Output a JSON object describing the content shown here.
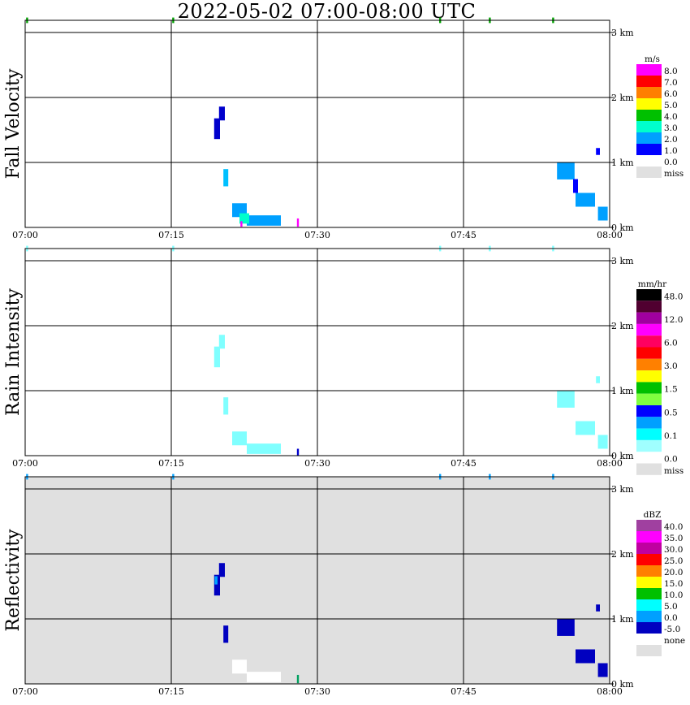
{
  "title": "2022-05-02   07:00-08:00 UTC",
  "chart_data": [
    {
      "type": "heatmap",
      "ylabel": "Fall Velocity",
      "x_ticks": [
        "07:00",
        "07:15",
        "07:30",
        "07:45",
        "08:00"
      ],
      "y_ticks": [
        "0 km",
        "1 km",
        "2 km",
        "3 km"
      ],
      "xlim_minutes": [
        0,
        60
      ],
      "ylim_km": [
        0,
        3.0
      ],
      "grid": true,
      "background": "#ffffff",
      "legend_unit": "m/s",
      "legend": [
        {
          "label": "8.0",
          "color": "#ff00ff"
        },
        {
          "label": "7.0",
          "color": "#ff0000"
        },
        {
          "label": "6.0",
          "color": "#ff7f00"
        },
        {
          "label": "5.0",
          "color": "#ffff00"
        },
        {
          "label": "4.0",
          "color": "#00c000"
        },
        {
          "label": "3.0",
          "color": "#00ffcc"
        },
        {
          "label": "2.0",
          "color": "#00a0ff"
        },
        {
          "label": "1.0",
          "color": "#0000ff"
        },
        {
          "label": "0.0",
          "color": ""
        },
        {
          "label": "miss",
          "color": "#e0e0e0"
        }
      ],
      "echoes": [
        {
          "t": 20.2,
          "h": 1.65,
          "w": 0.6,
          "d": 0.2,
          "color": "#0000cc"
        },
        {
          "t": 19.7,
          "h": 1.43,
          "w": 0.6,
          "d": 0.3,
          "color": "#0000cc"
        },
        {
          "t": 20.6,
          "h": 0.72,
          "w": 0.5,
          "d": 0.25,
          "color": "#00c0ff"
        },
        {
          "t": 22.0,
          "h": 0.25,
          "w": 1.5,
          "d": 0.2,
          "color": "#00a0ff"
        },
        {
          "t": 24.5,
          "h": 0.1,
          "w": 3.5,
          "d": 0.15,
          "color": "#00a0ff"
        },
        {
          "t": 22.5,
          "h": 0.13,
          "w": 1.0,
          "d": 0.15,
          "color": "#00ffcc"
        },
        {
          "t": 28.0,
          "h": 0.07,
          "w": 0.2,
          "d": 0.12,
          "color": "#ff00ff"
        },
        {
          "t": 22.2,
          "h": 0.05,
          "w": 0.2,
          "d": 0.08,
          "color": "#ff00ff"
        },
        {
          "t": 55.5,
          "h": 0.82,
          "w": 1.8,
          "d": 0.25,
          "color": "#00a0ff"
        },
        {
          "t": 57.5,
          "h": 0.4,
          "w": 2.0,
          "d": 0.2,
          "color": "#00a0ff"
        },
        {
          "t": 59.3,
          "h": 0.2,
          "w": 1.0,
          "d": 0.2,
          "color": "#00a0ff"
        },
        {
          "t": 56.5,
          "h": 0.6,
          "w": 0.5,
          "d": 0.2,
          "color": "#0000ff"
        },
        {
          "t": 58.8,
          "h": 1.1,
          "w": 0.4,
          "d": 0.1,
          "color": "#0000ff"
        },
        {
          "t": 0.2,
          "h": 3.0,
          "w": 0.2,
          "d": 0.08,
          "color": "#00a000"
        },
        {
          "t": 15.2,
          "h": 3.0,
          "w": 0.2,
          "d": 0.08,
          "color": "#00a000"
        },
        {
          "t": 42.6,
          "h": 3.0,
          "w": 0.2,
          "d": 0.08,
          "color": "#00a000"
        },
        {
          "t": 47.7,
          "h": 3.0,
          "w": 0.2,
          "d": 0.08,
          "color": "#00a000"
        },
        {
          "t": 54.2,
          "h": 3.0,
          "w": 0.2,
          "d": 0.08,
          "color": "#00a000"
        }
      ]
    },
    {
      "type": "heatmap",
      "ylabel": "Rain Intensity",
      "x_ticks": [
        "07:00",
        "07:15",
        "07:30",
        "07:45",
        "08:00"
      ],
      "y_ticks": [
        "0 km",
        "1 km",
        "2 km",
        "3 km"
      ],
      "xlim_minutes": [
        0,
        60
      ],
      "ylim_km": [
        0,
        3.0
      ],
      "grid": true,
      "background": "#ffffff",
      "legend_unit": "mm/hr",
      "legend": [
        {
          "label": "48.0",
          "color": "#000000"
        },
        {
          "label": "",
          "color": "#500030"
        },
        {
          "label": "12.0",
          "color": "#a000a0"
        },
        {
          "label": "",
          "color": "#ff00ff"
        },
        {
          "label": "6.0",
          "color": "#ff0060"
        },
        {
          "label": "",
          "color": "#ff0000"
        },
        {
          "label": "3.0",
          "color": "#ff8000"
        },
        {
          "label": "",
          "color": "#ffff00"
        },
        {
          "label": "1.5",
          "color": "#00c000"
        },
        {
          "label": "",
          "color": "#80ff40"
        },
        {
          "label": "0.5",
          "color": "#0000ff"
        },
        {
          "label": "",
          "color": "#00a0ff"
        },
        {
          "label": "0.1",
          "color": "#00ffff"
        },
        {
          "label": "",
          "color": "#a0ffff"
        },
        {
          "label": "0.0",
          "color": ""
        },
        {
          "label": "miss",
          "color": "#e0e0e0"
        }
      ],
      "echoes": [
        {
          "t": 20.2,
          "h": 1.65,
          "w": 0.6,
          "d": 0.2,
          "color": "#80ffff"
        },
        {
          "t": 19.7,
          "h": 1.43,
          "w": 0.6,
          "d": 0.3,
          "color": "#80ffff"
        },
        {
          "t": 20.6,
          "h": 0.72,
          "w": 0.5,
          "d": 0.25,
          "color": "#80ffff"
        },
        {
          "t": 22.0,
          "h": 0.25,
          "w": 1.5,
          "d": 0.2,
          "color": "#80ffff"
        },
        {
          "t": 24.5,
          "h": 0.1,
          "w": 3.5,
          "d": 0.15,
          "color": "#80ffff"
        },
        {
          "t": 28.0,
          "h": 0.05,
          "w": 0.2,
          "d": 0.1,
          "color": "#0000cc"
        },
        {
          "t": 55.5,
          "h": 0.82,
          "w": 1.8,
          "d": 0.25,
          "color": "#80ffff"
        },
        {
          "t": 57.5,
          "h": 0.4,
          "w": 2.0,
          "d": 0.2,
          "color": "#80ffff"
        },
        {
          "t": 59.3,
          "h": 0.2,
          "w": 1.0,
          "d": 0.2,
          "color": "#80ffff"
        },
        {
          "t": 58.8,
          "h": 1.1,
          "w": 0.4,
          "d": 0.1,
          "color": "#80ffff"
        },
        {
          "t": 0.2,
          "h": 3.0,
          "w": 0.2,
          "d": 0.08,
          "color": "#80ffff"
        },
        {
          "t": 15.2,
          "h": 3.0,
          "w": 0.2,
          "d": 0.08,
          "color": "#80ffff"
        },
        {
          "t": 42.6,
          "h": 3.0,
          "w": 0.2,
          "d": 0.08,
          "color": "#80ffff"
        },
        {
          "t": 47.7,
          "h": 3.0,
          "w": 0.2,
          "d": 0.08,
          "color": "#80ffff"
        },
        {
          "t": 54.2,
          "h": 3.0,
          "w": 0.2,
          "d": 0.08,
          "color": "#80ffff"
        }
      ]
    },
    {
      "type": "heatmap",
      "ylabel": "Reflectivity",
      "x_ticks": [
        "07:00",
        "07:15",
        "07:30",
        "07:45",
        "08:00"
      ],
      "y_ticks": [
        "0 km",
        "1 km",
        "2 km",
        "3 km"
      ],
      "xlim_minutes": [
        0,
        60
      ],
      "ylim_km": [
        0,
        3.0
      ],
      "grid": true,
      "background": "#e0e0e0",
      "legend_unit": "dBZ",
      "legend": [
        {
          "label": "40.0",
          "color": "#a040a0"
        },
        {
          "label": "35.0",
          "color": "#ff00ff"
        },
        {
          "label": "30.0",
          "color": "#c000a0"
        },
        {
          "label": "25.0",
          "color": "#ff0000"
        },
        {
          "label": "20.0",
          "color": "#ff8000"
        },
        {
          "label": "15.0",
          "color": "#ffff00"
        },
        {
          "label": "10.0",
          "color": "#00c000"
        },
        {
          "label": "5.0",
          "color": "#00ffff"
        },
        {
          "label": "0.0",
          "color": "#00a0ff"
        },
        {
          "label": "-5.0",
          "color": "#0000c0"
        },
        {
          "label": "none",
          "color": ""
        },
        {
          "label": "",
          "color": "#e0e0e0"
        }
      ],
      "echoes": [
        {
          "t": 20.2,
          "h": 1.65,
          "w": 0.6,
          "d": 0.2,
          "color": "#0000c0"
        },
        {
          "t": 19.7,
          "h": 1.43,
          "w": 0.6,
          "d": 0.3,
          "color": "#0000c0"
        },
        {
          "t": 19.6,
          "h": 1.5,
          "w": 0.3,
          "d": 0.12,
          "color": "#00a0ff"
        },
        {
          "t": 20.6,
          "h": 0.72,
          "w": 0.5,
          "d": 0.25,
          "color": "#0000c0"
        },
        {
          "t": 22.0,
          "h": 0.25,
          "w": 1.5,
          "d": 0.2,
          "color": "#ffffff"
        },
        {
          "t": 24.5,
          "h": 0.1,
          "w": 3.5,
          "d": 0.15,
          "color": "#ffffff"
        },
        {
          "t": 28.0,
          "h": 0.07,
          "w": 0.2,
          "d": 0.12,
          "color": "#00a060"
        },
        {
          "t": 55.5,
          "h": 0.82,
          "w": 1.8,
          "d": 0.25,
          "color": "#0000c0"
        },
        {
          "t": 57.5,
          "h": 0.4,
          "w": 2.0,
          "d": 0.2,
          "color": "#0000c0"
        },
        {
          "t": 59.3,
          "h": 0.2,
          "w": 1.0,
          "d": 0.2,
          "color": "#0000c0"
        },
        {
          "t": 58.8,
          "h": 1.1,
          "w": 0.4,
          "d": 0.1,
          "color": "#0000c0"
        },
        {
          "t": 0.2,
          "h": 3.0,
          "w": 0.2,
          "d": 0.08,
          "color": "#00a0ff"
        },
        {
          "t": 15.2,
          "h": 3.0,
          "w": 0.2,
          "d": 0.08,
          "color": "#00a0ff"
        },
        {
          "t": 42.6,
          "h": 3.0,
          "w": 0.2,
          "d": 0.08,
          "color": "#00a0ff"
        },
        {
          "t": 47.7,
          "h": 3.0,
          "w": 0.2,
          "d": 0.08,
          "color": "#00a0ff"
        },
        {
          "t": 54.2,
          "h": 3.0,
          "w": 0.2,
          "d": 0.08,
          "color": "#00a0ff"
        }
      ]
    }
  ]
}
